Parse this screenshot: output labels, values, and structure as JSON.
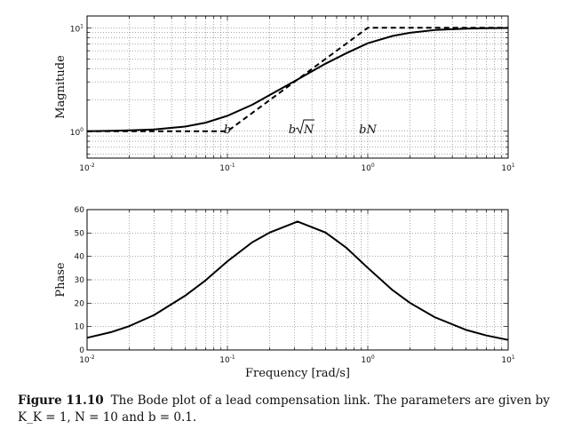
{
  "chart_data": [
    {
      "type": "line",
      "panel": "magnitude",
      "ylabel": "Magnitude",
      "xscale": "log",
      "yscale": "log",
      "xlim": [
        0.01,
        10
      ],
      "ylim": [
        0.55,
        13
      ],
      "grid": true,
      "xticks": [
        {
          "base": "10",
          "exp": "-2"
        },
        {
          "base": "10",
          "exp": "-1"
        },
        {
          "base": "10",
          "exp": "0"
        },
        {
          "base": "10",
          "exp": "1"
        }
      ],
      "yticks": [
        {
          "value": 1,
          "base": "10",
          "exp": "0"
        },
        {
          "value": 10,
          "base": "10",
          "exp": "1"
        }
      ],
      "series": [
        {
          "style": "solid",
          "x": [
            0.01,
            0.015,
            0.02,
            0.03,
            0.05,
            0.07,
            0.1,
            0.15,
            0.2,
            0.3,
            0.316,
            0.5,
            0.7,
            1,
            1.5,
            2,
            3,
            5,
            7,
            10
          ],
          "y": [
            1.0,
            1.01,
            1.02,
            1.04,
            1.11,
            1.21,
            1.41,
            1.8,
            2.24,
            3.04,
            3.16,
            4.5,
            5.66,
            7.09,
            8.33,
            8.95,
            9.51,
            9.81,
            9.9,
            9.95
          ]
        },
        {
          "style": "dashed",
          "x": [
            0.01,
            0.1,
            1,
            10
          ],
          "y": [
            1,
            1,
            10,
            10
          ]
        }
      ],
      "annotations": [
        {
          "x": 0.1,
          "prefix": "b",
          "sqrt": ""
        },
        {
          "x": 0.316,
          "prefix": "b",
          "sqrt": "N"
        },
        {
          "x": 1,
          "prefix": "bN",
          "sqrt": ""
        }
      ]
    },
    {
      "type": "line",
      "panel": "phase",
      "xlabel": "Frequency [rad/s]",
      "ylabel": "Phase",
      "xscale": "log",
      "xlim": [
        0.01,
        10
      ],
      "ylim": [
        0,
        60
      ],
      "grid": true,
      "xticks": [
        {
          "base": "10",
          "exp": "-2"
        },
        {
          "base": "10",
          "exp": "-1"
        },
        {
          "base": "10",
          "exp": "0"
        },
        {
          "base": "10",
          "exp": "1"
        }
      ],
      "yticks": [
        "0",
        "10",
        "20",
        "30",
        "40",
        "50",
        "60"
      ],
      "series": [
        {
          "style": "solid",
          "x": [
            0.01,
            0.015,
            0.02,
            0.03,
            0.05,
            0.07,
            0.1,
            0.15,
            0.2,
            0.316,
            0.5,
            0.7,
            1,
            1.5,
            2,
            3,
            5,
            7,
            10
          ],
          "y": [
            5.2,
            7.7,
            10.2,
            14.9,
            23.2,
            29.8,
            37.9,
            46.0,
            50.2,
            54.9,
            50.2,
            43.8,
            35.1,
            25.6,
            20.1,
            14.0,
            8.6,
            6.2,
            4.3
          ]
        }
      ]
    }
  ],
  "caption": {
    "label": "Figure 11.10",
    "text": "The Bode plot of a lead compensation link. The parameters are given by K_K = 1, N = 10 and b = 0.1."
  }
}
